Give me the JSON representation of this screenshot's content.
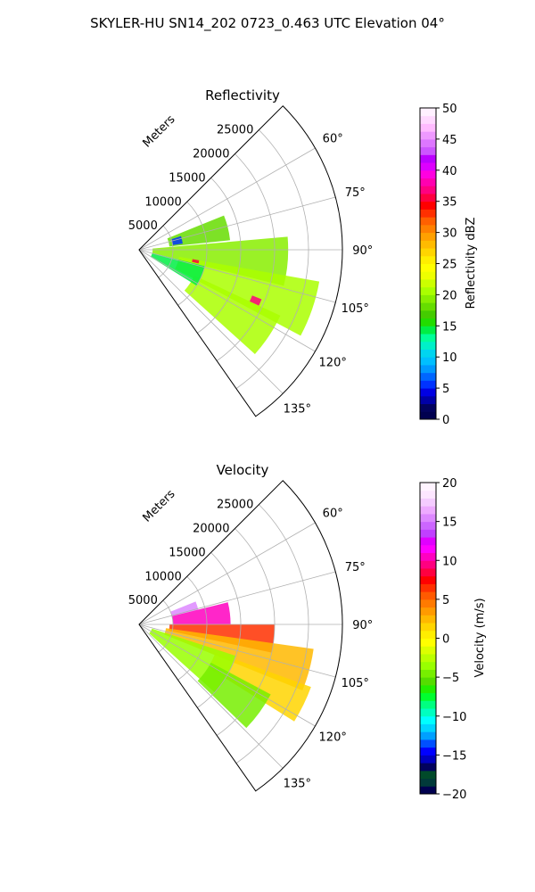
{
  "suptitle": "SKYLER-HU  SN14_202  0723_0.463 UTC Elevation 04°",
  "colors": {
    "reflectivity_scale": [
      "#00004f",
      "#02025e",
      "#0000a6",
      "#0000e3",
      "#0033ff",
      "#0066ff",
      "#0099ff",
      "#00bfff",
      "#00d5f0",
      "#00f0c8",
      "#00ff99",
      "#00ee44",
      "#22dd00",
      "#44cc00",
      "#66dd00",
      "#88ee00",
      "#aaff00",
      "#ccff00",
      "#eeff00",
      "#ffff00",
      "#ffee00",
      "#ffd500",
      "#ffbb00",
      "#ffa000",
      "#ff8000",
      "#ff6000",
      "#ff3000",
      "#ff0000",
      "#ff0040",
      "#ff0080",
      "#ff00b0",
      "#ff00e0",
      "#dd00ff",
      "#bb00ff",
      "#cc55ff",
      "#dd77ff",
      "#ee99ff",
      "#ffbbff",
      "#ffd8ff",
      "#fff0ff"
    ],
    "velocity_scale": [
      "#00004f",
      "#013a3a",
      "#014a2a",
      "#02025e",
      "#0000c0",
      "#0000ff",
      "#0050ff",
      "#00a0ff",
      "#00d5ff",
      "#00ffff",
      "#00ffc0",
      "#00ff80",
      "#00ff30",
      "#22ee00",
      "#55dd00",
      "#77ee00",
      "#99ff00",
      "#bbff00",
      "#ddff00",
      "#ffff00",
      "#ffee00",
      "#ffd500",
      "#ffb800",
      "#ff9a00",
      "#ff7a00",
      "#ff5a00",
      "#ff3000",
      "#ff0000",
      "#ff0040",
      "#ff0080",
      "#ff00c0",
      "#ff00ff",
      "#e000ff",
      "#c040ff",
      "#cc66ff",
      "#dd88ff",
      "#eeaaff",
      "#f5ccff",
      "#fde6ff",
      "#fff4ff"
    ]
  },
  "chart_data": [
    {
      "type": "heatmap",
      "projection": "polar-sector",
      "title": "Reflectivity",
      "radial_label": "Meters",
      "radial_ticks": [
        5000,
        10000,
        15000,
        20000,
        25000
      ],
      "radial_tick_labels": [
        "5000",
        "10000",
        "15000",
        "20000",
        "25000"
      ],
      "rlim": [
        0,
        30000
      ],
      "theta_ticks": [
        60,
        75,
        90,
        105,
        120,
        135
      ],
      "theta_tick_labels": [
        "60°",
        "75°",
        "90°",
        "105°",
        "120°",
        "135°"
      ],
      "theta_range_deg": [
        45,
        145
      ],
      "grid": true,
      "colorbar": {
        "label": "Reflectivity dBZ",
        "range": [
          0,
          50
        ],
        "ticks": [
          0,
          5,
          10,
          15,
          20,
          25,
          30,
          35,
          40,
          45,
          50
        ],
        "tick_labels": [
          "0",
          "5",
          "10",
          "15",
          "20",
          "25",
          "30",
          "35",
          "40",
          "45",
          "50"
        ]
      },
      "regions": [
        {
          "az": [
            68,
            84
          ],
          "r": [
            4500,
            13500
          ],
          "value": 18
        },
        {
          "az": [
            85,
            104
          ],
          "r": [
            2000,
            22000
          ],
          "value": 19
        },
        {
          "az": [
            100,
            118
          ],
          "r": [
            6000,
            27000
          ],
          "value": 21
        },
        {
          "az": [
            115,
            132
          ],
          "r": [
            9000,
            23000
          ],
          "value": 20
        },
        {
          "az": [
            104,
            122
          ],
          "r": [
            2000,
            10000
          ],
          "value": 14
        },
        {
          "az": [
            72,
            82
          ],
          "r": [
            5000,
            6500
          ],
          "value": 5
        },
        {
          "az": [
            100,
            103
          ],
          "r": [
            8000,
            9000
          ],
          "value": 36
        },
        {
          "az": [
            112,
            115
          ],
          "r": [
            18000,
            19500
          ],
          "value": 37
        }
      ]
    },
    {
      "type": "heatmap",
      "projection": "polar-sector",
      "title": "Velocity",
      "radial_label": "Meters",
      "radial_ticks": [
        5000,
        10000,
        15000,
        20000,
        25000
      ],
      "radial_tick_labels": [
        "5000",
        "10000",
        "15000",
        "20000",
        "25000"
      ],
      "rlim": [
        0,
        30000
      ],
      "theta_ticks": [
        60,
        75,
        90,
        105,
        120,
        135
      ],
      "theta_tick_labels": [
        "60°",
        "75°",
        "90°",
        "105°",
        "120°",
        "135°"
      ],
      "theta_range_deg": [
        45,
        145
      ],
      "grid": true,
      "colorbar": {
        "label": "Velocity (m/s)",
        "range": [
          -20,
          20
        ],
        "ticks": [
          -20,
          -15,
          -10,
          -5,
          0,
          5,
          10,
          15,
          20
        ],
        "tick_labels": [
          "−20",
          "−15",
          "−10",
          "−5",
          "0",
          "5",
          "10",
          "15",
          "20"
        ]
      },
      "regions": [
        {
          "az": [
            68,
            76
          ],
          "r": [
            5000,
            9000
          ],
          "value": 15
        },
        {
          "az": [
            76,
            90
          ],
          "r": [
            5000,
            13500
          ],
          "value": 10
        },
        {
          "az": [
            90,
            102
          ],
          "r": [
            4500,
            20000
          ],
          "value": 6
        },
        {
          "az": [
            98,
            112
          ],
          "r": [
            4000,
            26000
          ],
          "value": 2
        },
        {
          "az": [
            110,
            122
          ],
          "r": [
            12000,
            27000
          ],
          "value": 1
        },
        {
          "az": [
            108,
            132
          ],
          "r": [
            2000,
            15000
          ],
          "value": -4
        },
        {
          "az": [
            118,
            134
          ],
          "r": [
            12000,
            22000
          ],
          "value": -5
        }
      ]
    }
  ]
}
